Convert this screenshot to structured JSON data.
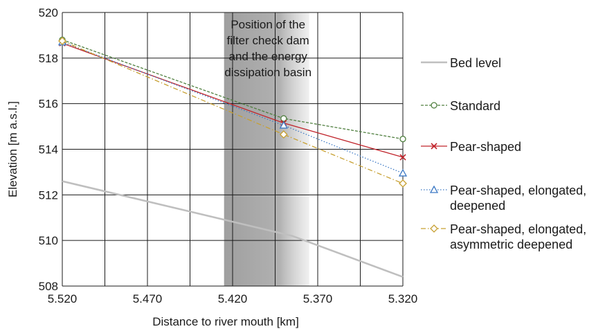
{
  "chart_data": {
    "type": "line",
    "xlabel": "Distance to river mouth [km]",
    "ylabel": "Elevation [m a.s.l.]",
    "x_reversed": true,
    "xlim": [
      5.52,
      5.32
    ],
    "ylim": [
      508,
      520
    ],
    "x_ticks": [
      "5.520",
      "5.470",
      "5.420",
      "5.370",
      "5.320"
    ],
    "y_ticks": [
      "508",
      "510",
      "512",
      "514",
      "516",
      "518",
      "520"
    ],
    "grid": true,
    "legend_position": "right",
    "annotation": {
      "text": "Position of the\nfilter check dam\nand the energy\ndissipation basin",
      "x_range": [
        5.425,
        5.375
      ]
    },
    "series": [
      {
        "name": "Bed level",
        "color": "#bfbfbf",
        "style": "solid",
        "marker": "none",
        "x": [
          5.52,
          5.385,
          5.32
        ],
        "y": [
          512.6,
          510.2,
          508.4
        ]
      },
      {
        "name": "Standard",
        "color": "#4f7f3f",
        "style": "dashed",
        "marker": "circle",
        "x": [
          5.52,
          5.39,
          5.32
        ],
        "y": [
          518.8,
          515.35,
          514.45
        ]
      },
      {
        "name": "Pear-shaped",
        "color": "#c0242b",
        "style": "solid",
        "marker": "x",
        "x": [
          5.52,
          5.39,
          5.32
        ],
        "y": [
          518.65,
          515.15,
          513.65
        ]
      },
      {
        "name": "Pear-shaped, elongated, deepened",
        "color": "#3b78c4",
        "style": "dotted",
        "marker": "triangle",
        "x": [
          5.52,
          5.39,
          5.32
        ],
        "y": [
          518.7,
          515.05,
          512.95
        ]
      },
      {
        "name": "Pear-shaped, elongated, asymmetric deepened",
        "color": "#c7a032",
        "style": "dashdot",
        "marker": "diamond",
        "x": [
          5.52,
          5.39,
          5.32
        ],
        "y": [
          518.75,
          514.65,
          512.5
        ]
      }
    ]
  },
  "legend": {
    "items": [
      {
        "label": "Bed level"
      },
      {
        "label": "Standard"
      },
      {
        "label": "Pear-shaped"
      },
      {
        "label": "Pear-shaped, elongated,\ndeepened"
      },
      {
        "label": "Pear-shaped, elongated,\nasymmetric deepened"
      }
    ]
  }
}
